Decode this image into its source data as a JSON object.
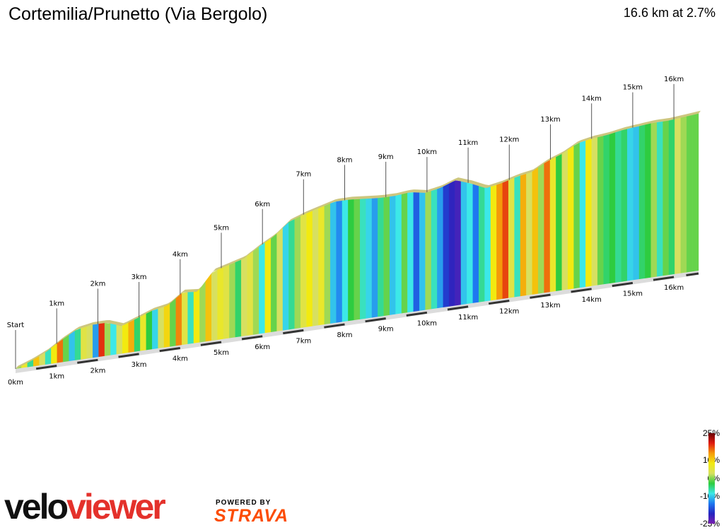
{
  "header": {
    "title": "Cortemilia/Prunetto (Via Bergolo)",
    "summary": "16.6 km at 2.7%"
  },
  "chart_data": {
    "type": "area",
    "total_km": 16.6,
    "avg_gradient_pct": 2.7,
    "start_label": "Start",
    "distance_labels": [
      "0km",
      "1km",
      "2km",
      "3km",
      "4km",
      "5km",
      "6km",
      "7km",
      "8km",
      "9km",
      "10km",
      "11km",
      "12km",
      "13km",
      "14km",
      "15km",
      "16km"
    ],
    "elevation_profile_rel": [
      0.0,
      0.04,
      0.09,
      0.16,
      0.22,
      0.24,
      0.24,
      0.2,
      0.24,
      0.28,
      0.3,
      0.38,
      0.37,
      0.5,
      0.53,
      0.56,
      0.63,
      0.69,
      0.78,
      0.82,
      0.85,
      0.88,
      0.88,
      0.87,
      0.86,
      0.86,
      0.87,
      0.85,
      0.87,
      0.91,
      0.87,
      0.82,
      0.84,
      0.87,
      0.89,
      0.95,
      0.99,
      1.05,
      1.07,
      1.08,
      1.1,
      1.11,
      1.12,
      1.12,
      1.13,
      1.14
    ],
    "gradient_segments_pct": [
      2,
      5,
      -2,
      8,
      3,
      -3,
      6,
      12,
      1,
      -6,
      -2,
      4,
      3,
      -8,
      15,
      2,
      -4,
      3,
      6,
      9,
      -1,
      5,
      0,
      -5,
      3,
      7,
      1,
      11,
      4,
      -3,
      6,
      2,
      8,
      3,
      5,
      4,
      2,
      -1,
      3,
      4,
      2,
      -4,
      6,
      1,
      3,
      -5,
      -2,
      2,
      4,
      6,
      3,
      5,
      2,
      -6,
      -9,
      -4,
      0,
      1,
      -3,
      -5,
      -8,
      -2,
      1,
      -6,
      -4,
      1,
      -4,
      -12,
      -6,
      2,
      -3,
      -8,
      -15,
      -18,
      -20,
      -6,
      -4,
      -10,
      -2,
      -4,
      6,
      10,
      14,
      4,
      -3,
      9,
      3,
      8,
      2,
      12,
      5,
      0,
      3,
      6,
      1,
      -4,
      6,
      3,
      1,
      -1,
      0,
      -2,
      -1,
      -5,
      -6,
      -1,
      0,
      2,
      -3,
      1,
      -1,
      3,
      2,
      1,
      1
    ],
    "gradient_scale": {
      "min_pct": -25,
      "max_pct": 25
    },
    "legend_ticks": [
      "25%",
      "10%",
      "0%",
      "-10%",
      "-25%"
    ],
    "legend_colors": [
      "#6a0000",
      "#e01a10",
      "#f59a0a",
      "#f2ea10",
      "#d7e060",
      "#2ecc40",
      "#3ce8e8",
      "#1e78f0",
      "#2424c0",
      "#7a20b0"
    ]
  },
  "branding": {
    "logo_part1": "velo",
    "logo_part2": "viewer",
    "powered_by": "POWERED BY",
    "strava": "STRAVA"
  }
}
